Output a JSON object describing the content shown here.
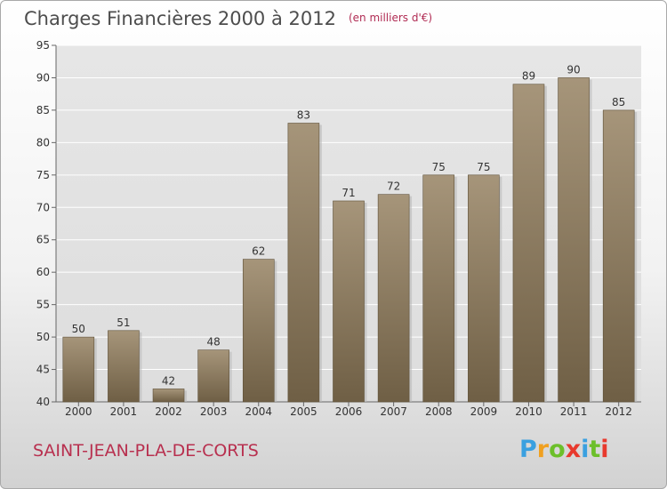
{
  "header": {
    "title": "Charges Financières 2000 à 2012",
    "unit": "(en milliers d'€)"
  },
  "footer": {
    "commune": "SAINT-JEAN-PLA-DE-CORTS",
    "logo_letters": [
      "P",
      "r",
      "o",
      "x",
      "i",
      "t",
      "i"
    ],
    "logo_colors": [
      "#3aa0e0",
      "#f0a020",
      "#6cbf2a",
      "#e8392d",
      "#3aa0e0",
      "#6cbf2a",
      "#e8392d"
    ]
  },
  "chart_data": {
    "type": "bar",
    "title": "Charges Financières 2000 à 2012",
    "subtitle": "(en milliers d'€)",
    "categories": [
      "2000",
      "2001",
      "2002",
      "2003",
      "2004",
      "2005",
      "2006",
      "2007",
      "2008",
      "2009",
      "2010",
      "2011",
      "2012"
    ],
    "values": [
      50,
      51,
      42,
      48,
      62,
      83,
      71,
      72,
      75,
      75,
      89,
      90,
      85
    ],
    "ylim": [
      40,
      95
    ],
    "yticks": [
      40,
      45,
      50,
      55,
      60,
      65,
      70,
      75,
      80,
      85,
      90,
      95
    ],
    "grid": true,
    "bar_color": "#8c7a5e"
  }
}
